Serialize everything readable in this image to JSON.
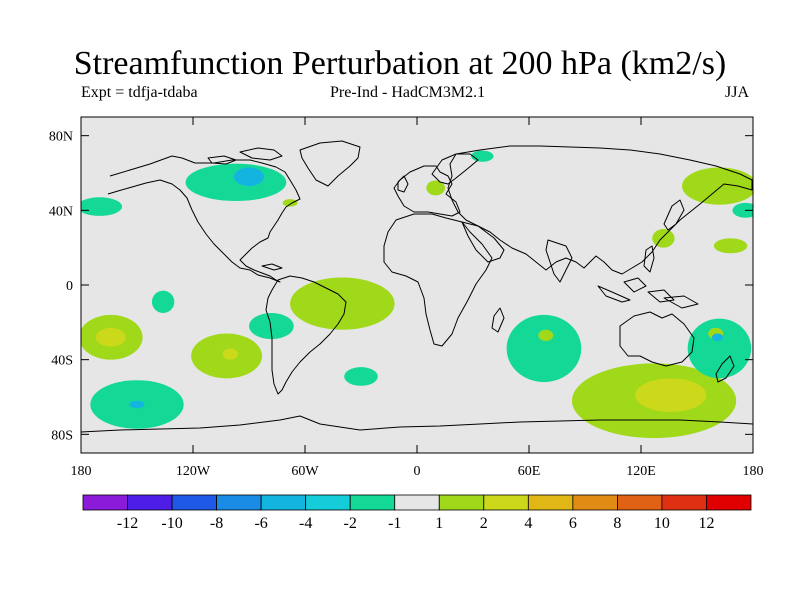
{
  "title": "Streamfunction Perturbation at 200 hPa (km2/s)",
  "subtitle_left": "Expt = tdfja-tdaba",
  "subtitle_center": "Pre-Ind - HadCM3M2.1",
  "subtitle_right": "JJA",
  "map": {
    "lon_range": [
      -180,
      180
    ],
    "lat_range": [
      -90,
      90
    ],
    "background_color": "#e6e6e6",
    "lat_ticks": [
      {
        "value": 80,
        "label": "80N"
      },
      {
        "value": 40,
        "label": "40N"
      },
      {
        "value": 0,
        "label": "0"
      },
      {
        "value": -40,
        "label": "40S"
      },
      {
        "value": -80,
        "label": "80S"
      }
    ],
    "lon_ticks": [
      {
        "value": -180,
        "label": "180"
      },
      {
        "value": -120,
        "label": "120W"
      },
      {
        "value": -60,
        "label": "60W"
      },
      {
        "value": 0,
        "label": "0"
      },
      {
        "value": 60,
        "label": "60E"
      },
      {
        "value": 120,
        "label": "120E"
      },
      {
        "value": 180,
        "label": "180"
      }
    ],
    "anomalies": [
      {
        "lon": -170,
        "lat": 42,
        "rlon": 12,
        "rlat": 5,
        "level": "-2"
      },
      {
        "lon": -97,
        "lat": 55,
        "rlon": 27,
        "rlat": 10,
        "level": "-2"
      },
      {
        "lon": -90,
        "lat": 58,
        "rlon": 8,
        "rlat": 5,
        "level": "-4"
      },
      {
        "lon": -68,
        "lat": 44,
        "rlon": 4,
        "rlat": 2,
        "level": "2"
      },
      {
        "lon": -40,
        "lat": -10,
        "rlon": 28,
        "rlat": 14,
        "level": "2"
      },
      {
        "lon": -136,
        "lat": -9,
        "rlon": 6,
        "rlat": 6,
        "level": "-2"
      },
      {
        "lon": -164,
        "lat": -28,
        "rlon": 17,
        "rlat": 12,
        "level": "2"
      },
      {
        "lon": -164,
        "lat": -28,
        "rlon": 8,
        "rlat": 5,
        "level": "4"
      },
      {
        "lon": -102,
        "lat": -38,
        "rlon": 19,
        "rlat": 12,
        "level": "2"
      },
      {
        "lon": -100,
        "lat": -37,
        "rlon": 4,
        "rlat": 3,
        "level": "4"
      },
      {
        "lon": -78,
        "lat": -22,
        "rlon": 12,
        "rlat": 7,
        "level": "-2"
      },
      {
        "lon": -30,
        "lat": -49,
        "rlon": 9,
        "rlat": 5,
        "level": "-2"
      },
      {
        "lon": -150,
        "lat": -64,
        "rlon": 25,
        "rlat": 13,
        "level": "-2"
      },
      {
        "lon": -150,
        "lat": -64,
        "rlon": 4,
        "rlat": 2,
        "level": "-4"
      },
      {
        "lon": 10,
        "lat": 52,
        "rlon": 5,
        "rlat": 4,
        "level": "2"
      },
      {
        "lon": 35,
        "lat": 69,
        "rlon": 6,
        "rlat": 3,
        "level": "-2"
      },
      {
        "lon": 68,
        "lat": -34,
        "rlon": 20,
        "rlat": 18,
        "level": "-2"
      },
      {
        "lon": 69,
        "lat": -27,
        "rlon": 4,
        "rlat": 3,
        "level": "2"
      },
      {
        "lon": 127,
        "lat": -62,
        "rlon": 44,
        "rlat": 20,
        "level": "2"
      },
      {
        "lon": 136,
        "lat": -59,
        "rlon": 19,
        "rlat": 9,
        "level": "4"
      },
      {
        "lon": 162,
        "lat": -34,
        "rlon": 17,
        "rlat": 16,
        "level": "-2"
      },
      {
        "lon": 160,
        "lat": -26,
        "rlon": 4,
        "rlat": 3,
        "level": "2"
      },
      {
        "lon": 161,
        "lat": -28,
        "rlon": 3,
        "rlat": 2,
        "level": "-4"
      },
      {
        "lon": 162,
        "lat": 53,
        "rlon": 20,
        "rlat": 10,
        "level": "2"
      },
      {
        "lon": 176,
        "lat": 40,
        "rlon": 7,
        "rlat": 4,
        "level": "-2"
      },
      {
        "lon": 132,
        "lat": 25,
        "rlon": 6,
        "rlat": 5,
        "level": "2"
      },
      {
        "lon": 168,
        "lat": 21,
        "rlon": 9,
        "rlat": 4,
        "level": "2"
      }
    ]
  },
  "colorbar": {
    "colors": [
      "#8c1ad9",
      "#4e1ee6",
      "#1e58e6",
      "#1a8ce6",
      "#14b4e0",
      "#14cdd9",
      "#14d996",
      "#e6e6e6",
      "#a0d91a",
      "#ccd91a",
      "#e0b714",
      "#e08c14",
      "#e06214",
      "#e03014",
      "#e00000"
    ],
    "labels": [
      "-12",
      "-10",
      "-8",
      "-6",
      "-4",
      "-2",
      "-1",
      "1",
      "2",
      "4",
      "6",
      "8",
      "10",
      "12"
    ]
  },
  "level_colors": {
    "-4": "#14b4e0",
    "-2": "#14d996",
    "2": "#a0d91a",
    "4": "#ccd91a"
  }
}
